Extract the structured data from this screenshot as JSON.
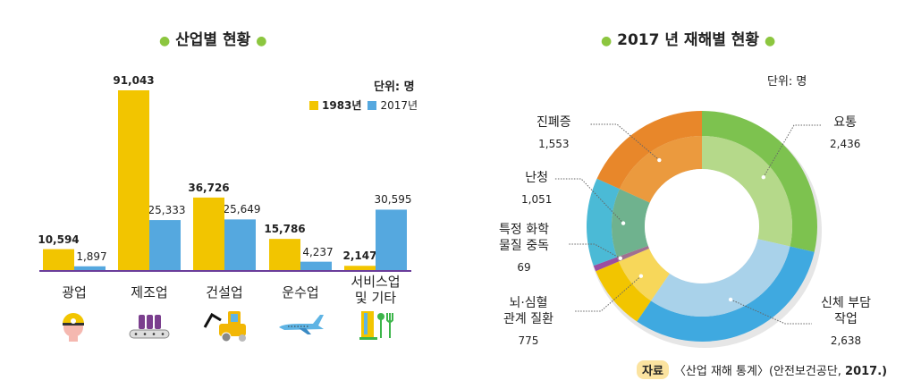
{
  "chart_data": [
    {
      "type": "bar",
      "title": "산업별 현황",
      "unit_label": "단위: 명",
      "categories": [
        "광업",
        "제조업",
        "건설업",
        "운수업",
        "서비스업\n및 기타"
      ],
      "series": [
        {
          "name": "1983년",
          "color": "#f2c500",
          "values": [
            10594,
            91043,
            36726,
            15786,
            2147
          ],
          "labels": [
            "10,594",
            "91,043",
            "36,726",
            "15,786",
            "2,147"
          ]
        },
        {
          "name": "2017년",
          "color": "#55a8df",
          "values": [
            1897,
            25333,
            25649,
            4237,
            30595
          ],
          "labels": [
            "1,897",
            "25,333",
            "25,649",
            "4,237",
            "30,595"
          ]
        }
      ],
      "icons": [
        "miner-helmet-icon",
        "conveyor-bottles-icon",
        "excavator-icon",
        "airplane-icon",
        "building-utensils-icon"
      ],
      "grid": false,
      "legend": "top-right"
    },
    {
      "type": "pie",
      "title": "2017 년 재해별 현황",
      "unit_label": "단위: 명",
      "donut": true,
      "slices": [
        {
          "name": "요통",
          "value": 2436,
          "label": "2,436",
          "color": "#7dc24f",
          "inner": "#b5d98a"
        },
        {
          "name": "신체 부담\n작업",
          "value": 2638,
          "label": "2,638",
          "color": "#3fa9e0",
          "inner": "#a9d2ea"
        },
        {
          "name": "뇌·심혈\n관계 질환",
          "value": 775,
          "label": "775",
          "color": "#f2c500",
          "inner": "#f7d75a"
        },
        {
          "name": "특정 화학\n물질 중독",
          "value": 69,
          "label": "69",
          "color": "#9b4ea0",
          "inner": "#a07090"
        },
        {
          "name": "난청",
          "value": 1051,
          "label": "1,051",
          "color": "#4bbad6",
          "inner": "#6fb28e"
        },
        {
          "name": "진폐증",
          "value": 1553,
          "label": "1,553",
          "color": "#e8872a",
          "inner": "#eb9a3e"
        }
      ]
    }
  ],
  "source": {
    "tag": "자료",
    "text": "〈산업 재해 통계〉(안전보건공단, ",
    "year": "2017.)"
  }
}
